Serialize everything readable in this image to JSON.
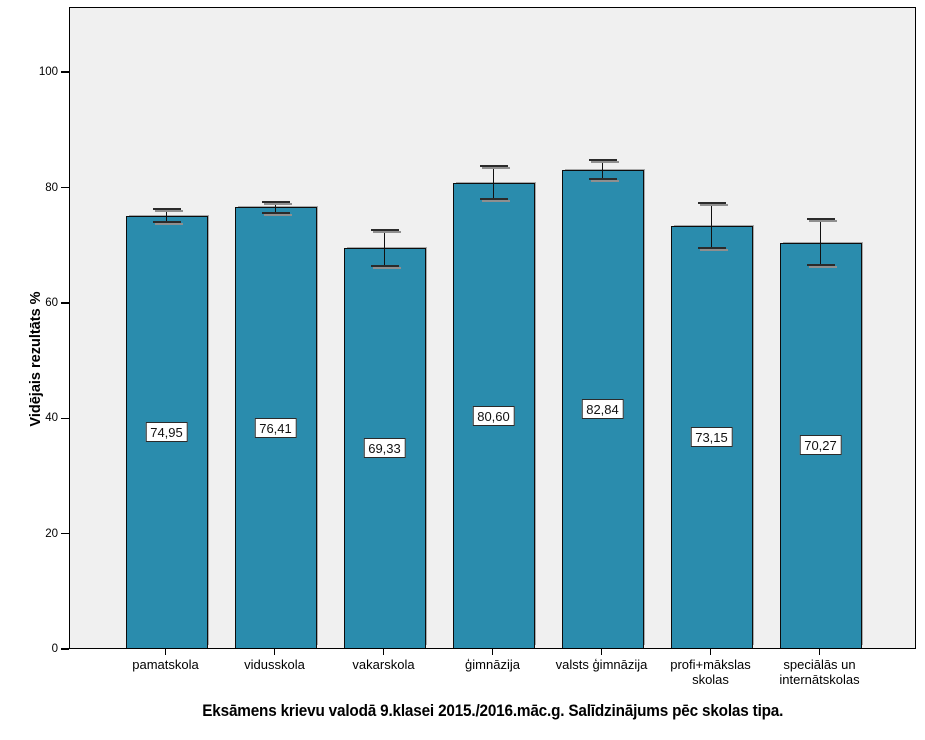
{
  "chart_data": {
    "type": "bar",
    "title": "Eksāmens krievu valodā 9.klasei 2015./2016.māc.g. Salīdzinājums pēc skolas tipa.",
    "xlabel": "",
    "ylabel": "Vidējais rezultāts %",
    "ylim": [
      0,
      111.3
    ],
    "yticks": [
      0,
      20,
      40,
      60,
      80,
      100
    ],
    "grid": false,
    "legend": null,
    "categories": [
      "pamatskola",
      "vidusskola",
      "vakarskola",
      "ģimnāzija",
      "valsts ģimnāzija",
      "profi+mākslas skolas",
      "speciālās un internātskolas"
    ],
    "tick_labels": [
      "pamatskola",
      "vidusskola",
      "vakarskola",
      "ģimnāzija",
      "valsts ģimnāzija",
      "profi+mākslas\nskolas",
      "speciālās un\ninternātskolas"
    ],
    "values": [
      74.95,
      76.41,
      69.33,
      80.6,
      82.84,
      73.15,
      70.27
    ],
    "value_labels": [
      "74,95",
      "76,41",
      "69,33",
      "80,60",
      "82,84",
      "73,15",
      "70,27"
    ],
    "error_low": [
      73.9,
      75.5,
      66.2,
      77.8,
      81.3,
      69.3,
      66.4
    ],
    "error_high": [
      76.1,
      77.3,
      72.4,
      83.6,
      84.6,
      77.2,
      74.3
    ],
    "bar_color": "#2A8CAD",
    "bar_border_color": "#0c0c0c",
    "plot_bg": "#F0F0F0",
    "error_bar_color": "#111111"
  }
}
